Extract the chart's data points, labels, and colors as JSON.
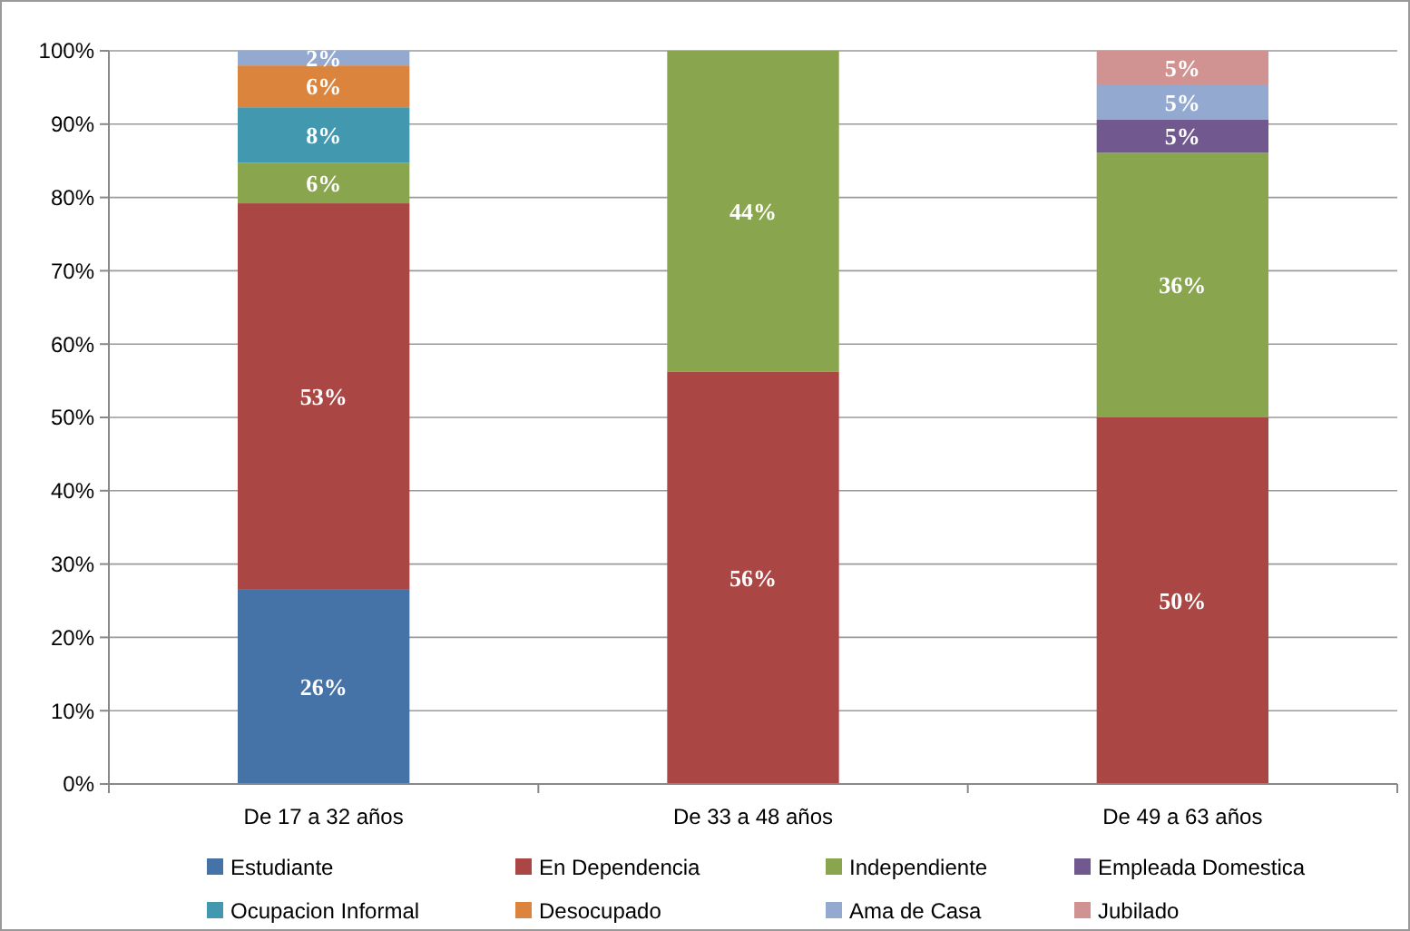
{
  "chart_data": {
    "type": "bar",
    "stacked": true,
    "categories": [
      "De 17 a 32 años",
      "De 33 a 48 años",
      "De 49 a 63 años"
    ],
    "series": [
      {
        "name": "Estudiante",
        "color": "#4572a7",
        "values": [
          26.5,
          null,
          null
        ],
        "value_labels": [
          "26%",
          null,
          null
        ]
      },
      {
        "name": "En Dependencia",
        "color": "#aa4643",
        "values": [
          52.7,
          56.2,
          50
        ],
        "value_labels": [
          "53%",
          "56%",
          "50%"
        ]
      },
      {
        "name": "Independiente",
        "color": "#89a54e",
        "values": [
          5.5,
          43.8,
          36.1
        ],
        "value_labels": [
          "6%",
          "44%",
          "36%"
        ]
      },
      {
        "name": "Empleada Domestica",
        "color": "#71588f",
        "values": [
          null,
          null,
          4.5
        ],
        "value_labels": [
          null,
          null,
          "5%"
        ]
      },
      {
        "name": "Ocupacion Informal",
        "color": "#4198af",
        "values": [
          7.6,
          null,
          null
        ],
        "value_labels": [
          "8%",
          null,
          null
        ]
      },
      {
        "name": "Desocupado",
        "color": "#db843d",
        "values": [
          5.7,
          null,
          null
        ],
        "value_labels": [
          "6%",
          null,
          null
        ]
      },
      {
        "name": "Ama de Casa",
        "color": "#93a9cf",
        "values": [
          2,
          null,
          4.7
        ],
        "value_labels": [
          "2%",
          null,
          "5%"
        ]
      },
      {
        "name": "Jubilado",
        "color": "#d19392",
        "values": [
          null,
          null,
          4.7
        ],
        "value_labels": [
          null,
          null,
          "5%"
        ]
      }
    ],
    "ylim": [
      0,
      100
    ],
    "yticks": [
      {
        "value": 0,
        "label": "0%"
      },
      {
        "value": 10,
        "label": "10%"
      },
      {
        "value": 20,
        "label": "20%"
      },
      {
        "value": 30,
        "label": "30%"
      },
      {
        "value": 40,
        "label": "40%"
      },
      {
        "value": 50,
        "label": "50%"
      },
      {
        "value": 60,
        "label": "60%"
      },
      {
        "value": 70,
        "label": "70%"
      },
      {
        "value": 80,
        "label": "80%"
      },
      {
        "value": 90,
        "label": "90%"
      },
      {
        "value": 100,
        "label": "100%"
      }
    ],
    "grid": "y",
    "legend": "bottom"
  }
}
